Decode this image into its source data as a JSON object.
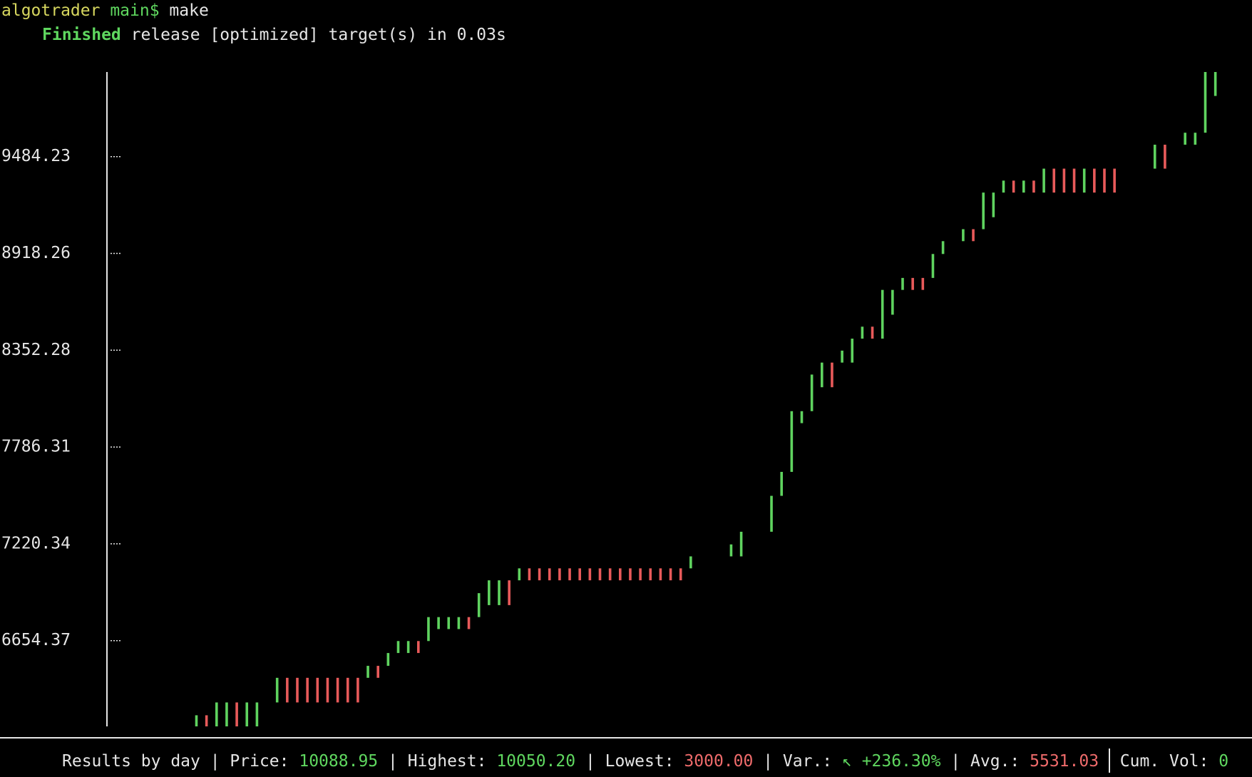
{
  "prompt": {
    "user": "algotrader",
    "branch": "main$",
    "command": "make"
  },
  "build": {
    "status": "Finished",
    "message": "release [optimized] target(s) in 0.03s"
  },
  "chart_data": {
    "type": "candlestick",
    "up_color": "#5fd35f",
    "down_color": "#e85a5a",
    "open": [
      6153,
      6218,
      6153,
      6153,
      6293,
      6153,
      6153,
      null,
      6293,
      6437,
      6437,
      6437,
      6437,
      6437,
      6437,
      6437,
      6437,
      6437,
      6507,
      6507,
      6582,
      6582,
      6652,
      6652,
      6722,
      6722,
      6722,
      6792,
      6792,
      6862,
      6862,
      7007,
      7007,
      7077,
      7077,
      7077,
      7077,
      7077,
      7077,
      7077,
      7077,
      7077,
      7077,
      7077,
      7077,
      7077,
      7077,
      7077,
      7077,
      7077,
      null,
      null,
      null,
      7147,
      7147,
      null,
      null,
      7291,
      7501,
      7641,
      7926,
      7996,
      8136,
      8280,
      8280,
      8280,
      8420,
      8490,
      8420,
      8560,
      8705,
      8775,
      8775,
      8775,
      8915,
      null,
      8990,
      9060,
      9060,
      9130,
      9274,
      9344,
      9274,
      9344,
      9274,
      9414,
      9414,
      9414,
      9274,
      9414,
      9414,
      9414,
      null,
      null,
      null,
      9414,
      9554,
      null,
      9554,
      9554,
      9624,
      9839
    ],
    "close": [
      6218,
      6153,
      6293,
      6293,
      6153,
      6293,
      6293,
      null,
      6437,
      6293,
      6293,
      6293,
      6293,
      6293,
      6293,
      6293,
      6293,
      6507,
      6437,
      6582,
      6652,
      6652,
      6582,
      6792,
      6792,
      6792,
      6792,
      6722,
      6932,
      7007,
      7007,
      6862,
      7077,
      7007,
      7007,
      7007,
      7007,
      7007,
      7007,
      7007,
      7007,
      7007,
      7007,
      7007,
      7007,
      7007,
      7007,
      7007,
      7007,
      7147,
      null,
      null,
      null,
      7217,
      7291,
      null,
      null,
      7501,
      7641,
      7996,
      7996,
      8210,
      8280,
      8136,
      8350,
      8420,
      8490,
      8420,
      8705,
      8705,
      8775,
      8705,
      8705,
      8915,
      8990,
      null,
      9060,
      8990,
      9274,
      9274,
      9344,
      9274,
      9344,
      9274,
      9414,
      9274,
      9274,
      9274,
      9414,
      9274,
      9274,
      9274,
      null,
      null,
      null,
      9554,
      9414,
      null,
      9624,
      9624,
      9979,
      9979
    ],
    "ylim": [
      6153,
      9979
    ],
    "yticks": [
      6654.37,
      7220.34,
      7786.31,
      8352.28,
      8918.26,
      9484.23
    ]
  },
  "status_bar": {
    "results": "Results by day",
    "separator": "|",
    "items": [
      {
        "label": "Price:",
        "value": "10088.95",
        "color": "#5fd75f"
      },
      {
        "label": "Highest:",
        "value": "10050.20",
        "color": "#5fd75f"
      },
      {
        "label": "Lowest:",
        "value": "3000.00",
        "color": "#ef6b6b"
      },
      {
        "label": "Var.:",
        "value": "↖ +236.30%",
        "color": "#5fd75f"
      },
      {
        "label": "Avg.:",
        "value": "5531.03",
        "color": "#ef6b6b"
      },
      {
        "label": "Cum. Vol:",
        "value": "0",
        "color": "#5fd75f"
      }
    ]
  }
}
